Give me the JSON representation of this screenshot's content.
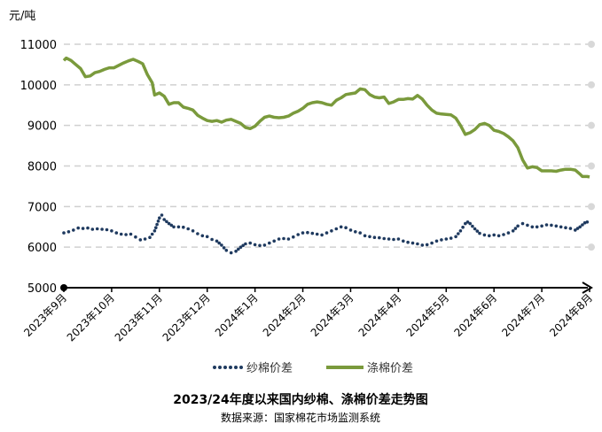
{
  "chart_data": {
    "type": "line",
    "title": "2023/24年度以来国内纱棉、涤棉价差走势图",
    "subtitle": "数据来源：国家棉花市场监测系统",
    "ylabel": "元/吨",
    "xlabel": "",
    "ylim": [
      5000,
      11000
    ],
    "y_ticks": [
      5000,
      6000,
      7000,
      8000,
      9000,
      10000,
      11000
    ],
    "x_ticks": [
      "2023年9月",
      "2023年10月",
      "2023年11月",
      "2023年12月",
      "2024年1月",
      "2024年2月",
      "2024年3月",
      "2024年4月",
      "2024年5月",
      "2024年6月",
      "2024年7月",
      "2024年8月"
    ],
    "x_range": [
      0,
      11
    ],
    "grid": "horizontal-dashed",
    "legend_position": "bottom",
    "series": [
      {
        "name": "纱棉价差",
        "style": "dotted",
        "color": "#1f3a5f",
        "points": [
          [
            0.0,
            6350
          ],
          [
            0.1,
            6380
          ],
          [
            0.2,
            6420
          ],
          [
            0.3,
            6470
          ],
          [
            0.4,
            6460
          ],
          [
            0.5,
            6470
          ],
          [
            0.6,
            6440
          ],
          [
            0.7,
            6450
          ],
          [
            0.8,
            6440
          ],
          [
            0.9,
            6430
          ],
          [
            1.0,
            6400
          ],
          [
            1.1,
            6350
          ],
          [
            1.2,
            6320
          ],
          [
            1.3,
            6310
          ],
          [
            1.4,
            6320
          ],
          [
            1.5,
            6250
          ],
          [
            1.6,
            6180
          ],
          [
            1.7,
            6200
          ],
          [
            1.8,
            6240
          ],
          [
            1.9,
            6400
          ],
          [
            1.95,
            6560
          ],
          [
            2.0,
            6720
          ],
          [
            2.05,
            6790
          ],
          [
            2.1,
            6680
          ],
          [
            2.2,
            6580
          ],
          [
            2.3,
            6500
          ],
          [
            2.4,
            6500
          ],
          [
            2.5,
            6490
          ],
          [
            2.6,
            6450
          ],
          [
            2.7,
            6400
          ],
          [
            2.8,
            6330
          ],
          [
            2.9,
            6280
          ],
          [
            3.0,
            6260
          ],
          [
            3.1,
            6190
          ],
          [
            3.2,
            6150
          ],
          [
            3.3,
            6050
          ],
          [
            3.4,
            5920
          ],
          [
            3.5,
            5860
          ],
          [
            3.6,
            5900
          ],
          [
            3.7,
            6000
          ],
          [
            3.8,
            6080
          ],
          [
            3.9,
            6100
          ],
          [
            4.0,
            6060
          ],
          [
            4.1,
            6040
          ],
          [
            4.2,
            6050
          ],
          [
            4.3,
            6100
          ],
          [
            4.4,
            6150
          ],
          [
            4.5,
            6200
          ],
          [
            4.6,
            6210
          ],
          [
            4.7,
            6200
          ],
          [
            4.8,
            6250
          ],
          [
            4.9,
            6310
          ],
          [
            5.0,
            6350
          ],
          [
            5.1,
            6360
          ],
          [
            5.2,
            6340
          ],
          [
            5.3,
            6320
          ],
          [
            5.4,
            6300
          ],
          [
            5.5,
            6350
          ],
          [
            5.6,
            6400
          ],
          [
            5.7,
            6450
          ],
          [
            5.8,
            6500
          ],
          [
            5.9,
            6480
          ],
          [
            6.0,
            6420
          ],
          [
            6.1,
            6380
          ],
          [
            6.2,
            6350
          ],
          [
            6.3,
            6280
          ],
          [
            6.4,
            6260
          ],
          [
            6.5,
            6240
          ],
          [
            6.6,
            6230
          ],
          [
            6.7,
            6210
          ],
          [
            6.8,
            6200
          ],
          [
            6.9,
            6190
          ],
          [
            7.0,
            6200
          ],
          [
            7.1,
            6150
          ],
          [
            7.2,
            6120
          ],
          [
            7.3,
            6100
          ],
          [
            7.4,
            6080
          ],
          [
            7.5,
            6050
          ],
          [
            7.6,
            6060
          ],
          [
            7.7,
            6100
          ],
          [
            7.8,
            6150
          ],
          [
            7.9,
            6180
          ],
          [
            8.0,
            6200
          ],
          [
            8.1,
            6220
          ],
          [
            8.2,
            6260
          ],
          [
            8.3,
            6400
          ],
          [
            8.4,
            6580
          ],
          [
            8.45,
            6620
          ],
          [
            8.5,
            6580
          ],
          [
            8.6,
            6450
          ],
          [
            8.7,
            6340
          ],
          [
            8.8,
            6300
          ],
          [
            8.9,
            6280
          ],
          [
            9.0,
            6300
          ],
          [
            9.1,
            6280
          ],
          [
            9.2,
            6310
          ],
          [
            9.3,
            6350
          ],
          [
            9.4,
            6400
          ],
          [
            9.5,
            6520
          ],
          [
            9.6,
            6580
          ],
          [
            9.7,
            6540
          ],
          [
            9.8,
            6500
          ],
          [
            9.9,
            6500
          ],
          [
            10.0,
            6520
          ],
          [
            10.1,
            6550
          ],
          [
            10.2,
            6540
          ],
          [
            10.3,
            6520
          ],
          [
            10.4,
            6500
          ],
          [
            10.5,
            6480
          ],
          [
            10.6,
            6460
          ],
          [
            10.7,
            6420
          ],
          [
            10.8,
            6500
          ],
          [
            10.9,
            6600
          ],
          [
            10.95,
            6620
          ],
          [
            11.0,
            6560
          ]
        ]
      },
      {
        "name": "涤棉价差",
        "style": "solid",
        "color": "#7a9a3c",
        "points": [
          [
            0.0,
            10600
          ],
          [
            0.05,
            10660
          ],
          [
            0.15,
            10600
          ],
          [
            0.25,
            10500
          ],
          [
            0.35,
            10400
          ],
          [
            0.45,
            10200
          ],
          [
            0.55,
            10220
          ],
          [
            0.65,
            10300
          ],
          [
            0.75,
            10330
          ],
          [
            0.85,
            10380
          ],
          [
            0.95,
            10420
          ],
          [
            1.05,
            10420
          ],
          [
            1.15,
            10480
          ],
          [
            1.25,
            10540
          ],
          [
            1.35,
            10590
          ],
          [
            1.45,
            10630
          ],
          [
            1.55,
            10580
          ],
          [
            1.65,
            10520
          ],
          [
            1.75,
            10250
          ],
          [
            1.85,
            10050
          ],
          [
            1.9,
            9750
          ],
          [
            2.0,
            9800
          ],
          [
            2.1,
            9720
          ],
          [
            2.2,
            9520
          ],
          [
            2.3,
            9560
          ],
          [
            2.4,
            9560
          ],
          [
            2.5,
            9450
          ],
          [
            2.6,
            9420
          ],
          [
            2.7,
            9380
          ],
          [
            2.8,
            9250
          ],
          [
            2.9,
            9180
          ],
          [
            3.0,
            9120
          ],
          [
            3.1,
            9100
          ],
          [
            3.2,
            9120
          ],
          [
            3.3,
            9080
          ],
          [
            3.4,
            9130
          ],
          [
            3.5,
            9150
          ],
          [
            3.6,
            9100
          ],
          [
            3.7,
            9050
          ],
          [
            3.8,
            8950
          ],
          [
            3.9,
            8920
          ],
          [
            4.0,
            8980
          ],
          [
            4.1,
            9100
          ],
          [
            4.2,
            9200
          ],
          [
            4.3,
            9230
          ],
          [
            4.4,
            9200
          ],
          [
            4.5,
            9190
          ],
          [
            4.6,
            9200
          ],
          [
            4.7,
            9230
          ],
          [
            4.8,
            9300
          ],
          [
            4.9,
            9350
          ],
          [
            5.0,
            9420
          ],
          [
            5.1,
            9520
          ],
          [
            5.2,
            9560
          ],
          [
            5.3,
            9580
          ],
          [
            5.4,
            9560
          ],
          [
            5.5,
            9520
          ],
          [
            5.6,
            9500
          ],
          [
            5.7,
            9620
          ],
          [
            5.8,
            9680
          ],
          [
            5.9,
            9760
          ],
          [
            6.0,
            9780
          ],
          [
            6.1,
            9800
          ],
          [
            6.2,
            9900
          ],
          [
            6.3,
            9880
          ],
          [
            6.4,
            9760
          ],
          [
            6.5,
            9700
          ],
          [
            6.6,
            9680
          ],
          [
            6.7,
            9700
          ],
          [
            6.8,
            9540
          ],
          [
            6.9,
            9580
          ],
          [
            7.0,
            9640
          ],
          [
            7.1,
            9640
          ],
          [
            7.2,
            9660
          ],
          [
            7.3,
            9650
          ],
          [
            7.4,
            9740
          ],
          [
            7.5,
            9650
          ],
          [
            7.6,
            9500
          ],
          [
            7.7,
            9380
          ],
          [
            7.8,
            9300
          ],
          [
            7.9,
            9280
          ],
          [
            8.0,
            9270
          ],
          [
            8.1,
            9260
          ],
          [
            8.2,
            9180
          ],
          [
            8.3,
            9000
          ],
          [
            8.4,
            8780
          ],
          [
            8.5,
            8820
          ],
          [
            8.6,
            8900
          ],
          [
            8.7,
            9020
          ],
          [
            8.8,
            9050
          ],
          [
            8.9,
            9000
          ],
          [
            9.0,
            8880
          ],
          [
            9.1,
            8850
          ],
          [
            9.2,
            8800
          ],
          [
            9.3,
            8720
          ],
          [
            9.4,
            8620
          ],
          [
            9.5,
            8450
          ],
          [
            9.6,
            8150
          ],
          [
            9.7,
            7950
          ],
          [
            9.8,
            7980
          ],
          [
            9.9,
            7960
          ],
          [
            10.0,
            7880
          ],
          [
            10.1,
            7880
          ],
          [
            10.2,
            7880
          ],
          [
            10.3,
            7870
          ],
          [
            10.4,
            7900
          ],
          [
            10.5,
            7920
          ],
          [
            10.6,
            7920
          ],
          [
            10.7,
            7900
          ],
          [
            10.8,
            7800
          ],
          [
            10.85,
            7740
          ],
          [
            10.95,
            7740
          ],
          [
            11.0,
            7730
          ]
        ]
      }
    ],
    "legend": [
      {
        "label": "纱棉价差",
        "style": "dotted",
        "color": "#1f3a5f"
      },
      {
        "label": "涤棉价差",
        "style": "solid",
        "color": "#7a9a3c"
      }
    ]
  }
}
